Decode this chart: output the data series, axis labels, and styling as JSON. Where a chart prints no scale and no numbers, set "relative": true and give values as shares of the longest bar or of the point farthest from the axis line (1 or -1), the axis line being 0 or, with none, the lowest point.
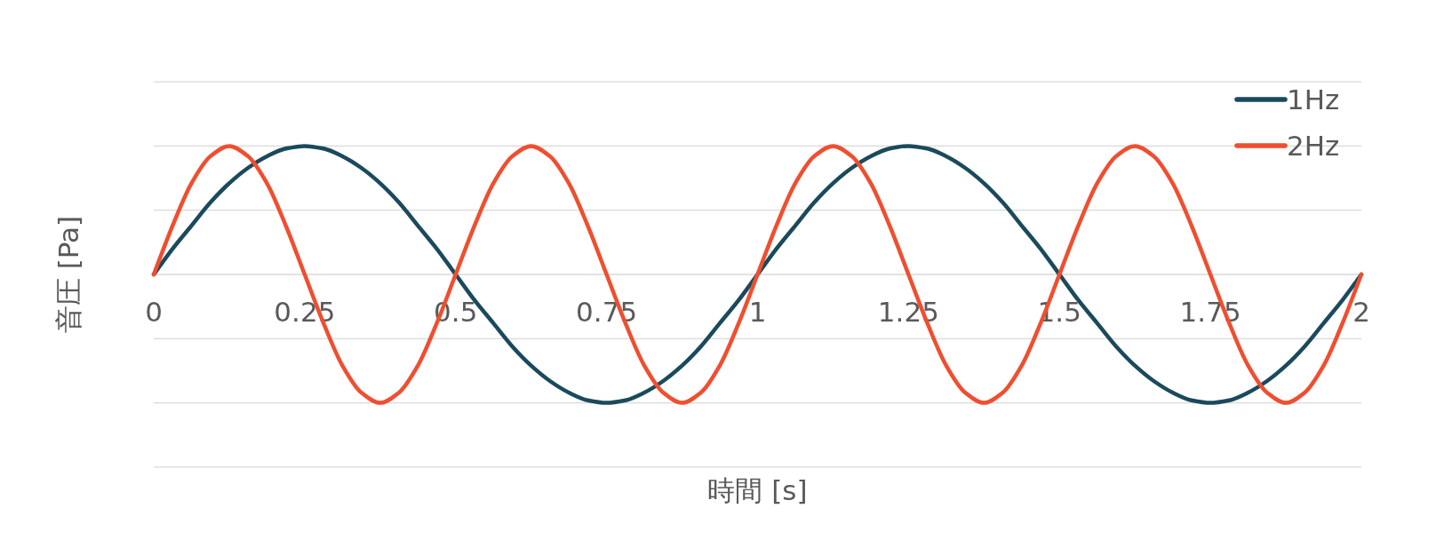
{
  "chart_data": {
    "type": "line",
    "relative": true,
    "xlabel": "時間 [s]",
    "ylabel": "音圧 [Pa]",
    "xlim": [
      0,
      2
    ],
    "xticks": [
      0,
      0.25,
      0.5,
      0.75,
      1,
      1.25,
      1.5,
      1.75,
      2
    ],
    "grid": "y",
    "legend": "top right",
    "marker": "none",
    "line_style": "solid",
    "x": [
      0,
      0.03125,
      0.0625,
      0.09375,
      0.125,
      0.15625,
      0.1875,
      0.21875,
      0.25,
      0.28125,
      0.3125,
      0.34375,
      0.375,
      0.40625,
      0.4375,
      0.46875,
      0.5,
      0.53125,
      0.5625,
      0.59375,
      0.625,
      0.65625,
      0.6875,
      0.71875,
      0.75,
      0.78125,
      0.8125,
      0.84375,
      0.875,
      0.90625,
      0.9375,
      0.96875,
      1,
      1.03125,
      1.0625,
      1.09375,
      1.125,
      1.15625,
      1.1875,
      1.21875,
      1.25,
      1.28125,
      1.3125,
      1.34375,
      1.375,
      1.40625,
      1.4375,
      1.46875,
      1.5,
      1.53125,
      1.5625,
      1.59375,
      1.625,
      1.65625,
      1.6875,
      1.71875,
      1.75,
      1.78125,
      1.8125,
      1.84375,
      1.875,
      1.90625,
      1.9375,
      1.96875,
      2
    ],
    "series": [
      {
        "name": "1Hz",
        "color": "#1a4a5c",
        "values": [
          0,
          0.2,
          0.38,
          0.56,
          0.71,
          0.83,
          0.92,
          0.98,
          1,
          0.98,
          0.92,
          0.83,
          0.71,
          0.56,
          0.38,
          0.2,
          0,
          -0.2,
          -0.38,
          -0.56,
          -0.71,
          -0.83,
          -0.92,
          -0.98,
          -1,
          -0.98,
          -0.92,
          -0.83,
          -0.71,
          -0.56,
          -0.38,
          -0.2,
          0,
          0.2,
          0.38,
          0.56,
          0.71,
          0.83,
          0.92,
          0.98,
          1,
          0.98,
          0.92,
          0.83,
          0.71,
          0.56,
          0.38,
          0.2,
          0,
          -0.2,
          -0.38,
          -0.56,
          -0.71,
          -0.83,
          -0.92,
          -0.98,
          -1,
          -0.98,
          -0.92,
          -0.83,
          -0.71,
          -0.56,
          -0.38,
          -0.2,
          0
        ]
      },
      {
        "name": "2Hz",
        "color": "#f04e30",
        "values": [
          0,
          0.38,
          0.71,
          0.92,
          1,
          0.92,
          0.71,
          0.38,
          0,
          -0.38,
          -0.71,
          -0.92,
          -1,
          -0.92,
          -0.71,
          -0.38,
          0,
          0.38,
          0.71,
          0.92,
          1,
          0.92,
          0.71,
          0.38,
          0,
          -0.38,
          -0.71,
          -0.92,
          -1,
          -0.92,
          -0.71,
          -0.38,
          0,
          0.38,
          0.71,
          0.92,
          1,
          0.92,
          0.71,
          0.38,
          0,
          -0.38,
          -0.71,
          -0.92,
          -1,
          -0.92,
          -0.71,
          -0.38,
          0,
          0.38,
          0.71,
          0.92,
          1,
          0.92,
          0.71,
          0.38,
          0,
          -0.38,
          -0.71,
          -0.92,
          -1,
          -0.92,
          -0.71,
          -0.38,
          0
        ]
      }
    ]
  }
}
